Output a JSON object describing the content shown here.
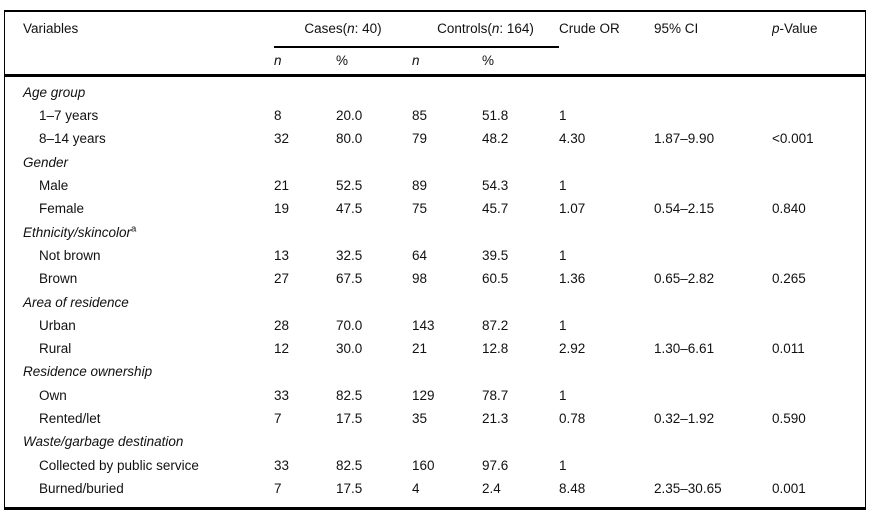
{
  "table": {
    "header": {
      "variables": "Variables",
      "cases_group": {
        "prefix": "Cases(",
        "n_italic": "n",
        "suffix": ": 40)"
      },
      "controls_group": {
        "prefix": "Controls(",
        "n_italic": "n",
        "suffix": ": 164)"
      },
      "sub": {
        "n": "n",
        "pct": "%"
      },
      "crude_or": "Crude OR",
      "ci": "95% CI",
      "p_value": {
        "prefix_italic": "p",
        "suffix": "-Value"
      }
    },
    "groups": [
      {
        "label": "Age group",
        "rows": [
          {
            "variable": "1–7 years",
            "cases_n": "8",
            "cases_pct": "20.0",
            "controls_n": "85",
            "controls_pct": "51.8",
            "crude_or": "1",
            "ci": "",
            "p": ""
          },
          {
            "variable": "8–14 years",
            "cases_n": "32",
            "cases_pct": "80.0",
            "controls_n": "79",
            "controls_pct": "48.2",
            "crude_or": "4.30",
            "ci": "1.87–9.90",
            "p": "<0.001"
          }
        ]
      },
      {
        "label": "Gender",
        "rows": [
          {
            "variable": "Male",
            "cases_n": "21",
            "cases_pct": "52.5",
            "controls_n": "89",
            "controls_pct": "54.3",
            "crude_or": "1",
            "ci": "",
            "p": ""
          },
          {
            "variable": "Female",
            "cases_n": "19",
            "cases_pct": "47.5",
            "controls_n": "75",
            "controls_pct": "45.7",
            "crude_or": "1.07",
            "ci": "0.54–2.15",
            "p": "0.840"
          }
        ]
      },
      {
        "label": "Ethnicity/skincolor",
        "sup": "a",
        "rows": [
          {
            "variable": "Not brown",
            "cases_n": "13",
            "cases_pct": "32.5",
            "controls_n": "64",
            "controls_pct": "39.5",
            "crude_or": "1",
            "ci": "",
            "p": ""
          },
          {
            "variable": "Brown",
            "cases_n": "27",
            "cases_pct": "67.5",
            "controls_n": "98",
            "controls_pct": "60.5",
            "crude_or": "1.36",
            "ci": "0.65–2.82",
            "p": "0.265"
          }
        ]
      },
      {
        "label": "Area of residence",
        "rows": [
          {
            "variable": "Urban",
            "cases_n": "28",
            "cases_pct": "70.0",
            "controls_n": "143",
            "controls_pct": "87.2",
            "crude_or": "1",
            "ci": "",
            "p": ""
          },
          {
            "variable": "Rural",
            "cases_n": "12",
            "cases_pct": "30.0",
            "controls_n": "21",
            "controls_pct": "12.8",
            "crude_or": "2.92",
            "ci": "1.30–6.61",
            "p": "0.011"
          }
        ]
      },
      {
        "label": "Residence ownership",
        "rows": [
          {
            "variable": "Own",
            "cases_n": "33",
            "cases_pct": "82.5",
            "controls_n": "129",
            "controls_pct": "78.7",
            "crude_or": "1",
            "ci": "",
            "p": ""
          },
          {
            "variable": "Rented/let",
            "cases_n": "7",
            "cases_pct": "17.5",
            "controls_n": "35",
            "controls_pct": "21.3",
            "crude_or": "0.78",
            "ci": "0.32–1.92",
            "p": "0.590"
          }
        ]
      },
      {
        "label": "Waste/garbage destination",
        "rows": [
          {
            "variable": "Collected by public service",
            "cases_n": "33",
            "cases_pct": "82.5",
            "controls_n": "160",
            "controls_pct": "97.6",
            "crude_or": "1",
            "ci": "",
            "p": ""
          },
          {
            "variable": "Burned/buried",
            "cases_n": "7",
            "cases_pct": "17.5",
            "controls_n": "4",
            "controls_pct": "2.4",
            "crude_or": "8.48",
            "ci": "2.35–30.65",
            "p": "0.001"
          }
        ]
      }
    ]
  }
}
